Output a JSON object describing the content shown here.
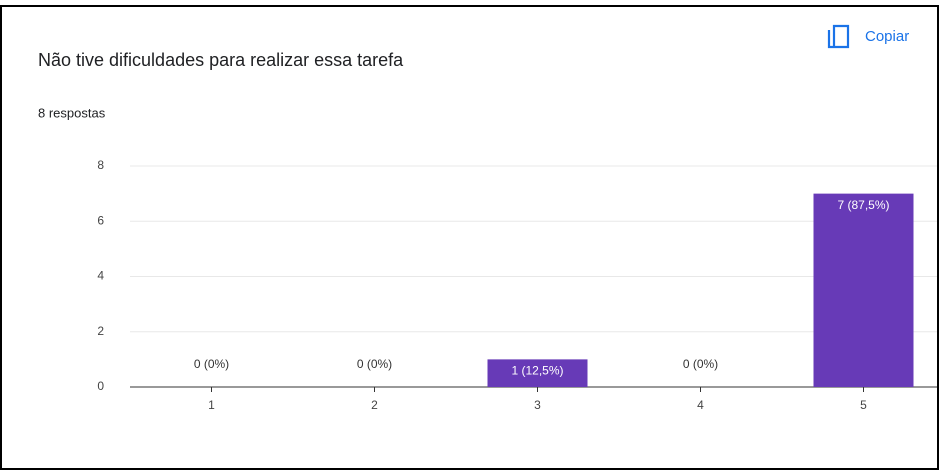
{
  "header": {
    "button": "Copiar"
  },
  "chart_data": {
    "type": "bar",
    "title": "Não tive dificuldades para realizar essa tarefa",
    "subtitle": "8 respostas",
    "categories": [
      "1",
      "2",
      "3",
      "4",
      "5"
    ],
    "values": [
      0,
      0,
      1,
      0,
      7
    ],
    "value_labels": [
      "0 (0%)",
      "0 (0%)",
      "1 (12,5%)",
      "0 (0%)",
      "7 (87,5%)"
    ],
    "color": "#673ab7",
    "ylim": [
      0,
      8
    ],
    "yticks": [
      0,
      2,
      4,
      6,
      8
    ],
    "grid": true
  }
}
